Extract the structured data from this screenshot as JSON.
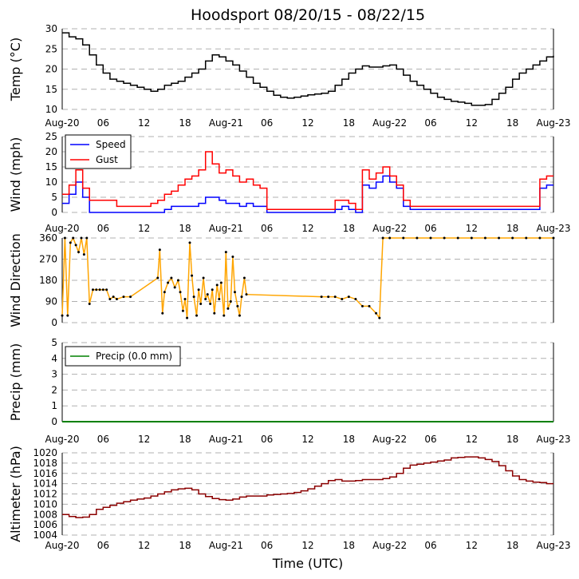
{
  "title": "Hoodsport 08/20/15 - 08/22/15",
  "xlabel": "Time (UTC)",
  "x_tick_labels": [
    "Aug-20",
    "06",
    "12",
    "18",
    "Aug-21",
    "06",
    "12",
    "18",
    "Aug-22",
    "06",
    "12",
    "18",
    "Aug-23"
  ],
  "x_range_hours": [
    0,
    72
  ],
  "colors": {
    "temp": "#000000",
    "speed": "#0000ff",
    "gust": "#ff0000",
    "direction": "#ffa500",
    "precip": "#008000",
    "altimeter": "#8b0000"
  },
  "chart_data": [
    {
      "type": "line",
      "id": "temp",
      "ylabel": "Temp (°C)",
      "ylim": [
        10,
        30
      ],
      "yticks": [
        10,
        15,
        20,
        25,
        30
      ],
      "series": [
        {
          "name": "Temp",
          "x": [
            0,
            1,
            2,
            3,
            4,
            5,
            6,
            7,
            8,
            9,
            10,
            11,
            12,
            13,
            14,
            15,
            16,
            17,
            18,
            19,
            20,
            21,
            22,
            23,
            24,
            25,
            26,
            27,
            28,
            29,
            30,
            31,
            32,
            33,
            34,
            35,
            36,
            37,
            38,
            39,
            40,
            41,
            42,
            43,
            44,
            45,
            46,
            47,
            48,
            49,
            50,
            51,
            52,
            53,
            54,
            55,
            56,
            57,
            58,
            59,
            60,
            61,
            62,
            63,
            64,
            65,
            66,
            67,
            68,
            69,
            70,
            71,
            72
          ],
          "values": [
            29,
            28,
            27.5,
            26,
            23.5,
            21,
            19,
            17.5,
            17,
            16.5,
            16,
            15.5,
            15,
            14.5,
            15,
            16,
            16.5,
            17,
            18,
            19,
            20,
            22,
            23.5,
            23,
            22,
            21,
            19.5,
            18,
            16.5,
            15.5,
            14.5,
            13.5,
            13,
            12.8,
            13,
            13.3,
            13.6,
            13.8,
            14,
            14.5,
            16,
            17.5,
            19,
            20,
            20.8,
            20.5,
            20.5,
            20.8,
            21,
            20,
            18.5,
            17,
            16,
            15,
            14,
            13,
            12.5,
            12,
            11.8,
            11.5,
            11,
            11,
            11.2,
            12.5,
            14,
            15.5,
            17.5,
            19,
            20,
            21,
            22,
            23,
            23.3
          ]
        }
      ]
    },
    {
      "type": "line",
      "id": "wind",
      "ylabel": "Wind (mph)",
      "ylim": [
        0,
        25
      ],
      "yticks": [
        0,
        5,
        10,
        15,
        20,
        25
      ],
      "legend": [
        "Speed",
        "Gust"
      ],
      "series": [
        {
          "name": "Speed",
          "x": [
            0,
            1,
            2,
            3,
            4,
            5,
            6,
            7,
            8,
            9,
            10,
            11,
            12,
            13,
            14,
            15,
            16,
            17,
            18,
            19,
            20,
            21,
            22,
            23,
            24,
            25,
            26,
            27,
            28,
            29,
            30,
            31,
            32,
            33,
            34,
            35,
            36,
            37,
            38,
            39,
            40,
            41,
            42,
            43,
            44,
            45,
            46,
            47,
            48,
            49,
            50,
            51,
            52,
            53,
            54,
            55,
            56,
            57,
            58,
            59,
            60,
            61,
            62,
            63,
            64,
            65,
            66,
            67,
            68,
            69,
            70,
            71,
            72
          ],
          "values": [
            3,
            6,
            10,
            5,
            0,
            0,
            0,
            0,
            0,
            0,
            0,
            0,
            0,
            0,
            0,
            1,
            2,
            2,
            2,
            2,
            3,
            5,
            5,
            4,
            3,
            3,
            2,
            3,
            2,
            2,
            0,
            0,
            0,
            0,
            0,
            0,
            0,
            0,
            0,
            0,
            1,
            2,
            1,
            0,
            9,
            8,
            10,
            12,
            10,
            8,
            2,
            1,
            1,
            1,
            1,
            1,
            1,
            1,
            1,
            1,
            1,
            1,
            1,
            1,
            1,
            1,
            1,
            1,
            1,
            1,
            8,
            9,
            9
          ]
        },
        {
          "name": "Gust",
          "x": [
            0,
            1,
            2,
            3,
            4,
            5,
            6,
            7,
            8,
            9,
            10,
            11,
            12,
            13,
            14,
            15,
            16,
            17,
            18,
            19,
            20,
            21,
            22,
            23,
            24,
            25,
            26,
            27,
            28,
            29,
            30,
            31,
            32,
            33,
            34,
            35,
            36,
            37,
            38,
            39,
            40,
            41,
            42,
            43,
            44,
            45,
            46,
            47,
            48,
            49,
            50,
            51,
            52,
            53,
            54,
            55,
            56,
            57,
            58,
            59,
            60,
            61,
            62,
            63,
            64,
            65,
            66,
            67,
            68,
            69,
            70,
            71,
            72
          ],
          "values": [
            6,
            9,
            14,
            8,
            4,
            4,
            4,
            4,
            2,
            2,
            2,
            2,
            2,
            3,
            4,
            6,
            7,
            9,
            11,
            12,
            14,
            20,
            16,
            13,
            14,
            12,
            10,
            11,
            9,
            8,
            1,
            1,
            1,
            1,
            1,
            1,
            1,
            1,
            1,
            1,
            4,
            4,
            3,
            1,
            14,
            11,
            13,
            15,
            12,
            9,
            4,
            2,
            2,
            2,
            2,
            2,
            2,
            2,
            2,
            2,
            2,
            2,
            2,
            2,
            2,
            2,
            2,
            2,
            2,
            2,
            11,
            12,
            12
          ]
        }
      ]
    },
    {
      "type": "scatter",
      "id": "direction",
      "ylabel": "Wind Direction",
      "ylim": [
        0,
        360
      ],
      "yticks": [
        0,
        90,
        180,
        270,
        360
      ],
      "series": [
        {
          "name": "Direction",
          "x": [
            0,
            0.4,
            0.8,
            1.2,
            1.6,
            2,
            2.4,
            2.8,
            3.2,
            3.6,
            4,
            4.5,
            5,
            5.5,
            6,
            6.5,
            7,
            7.5,
            8,
            9,
            10,
            14,
            14.3,
            14.7,
            15,
            15.5,
            16,
            16.5,
            17,
            17.3,
            17.7,
            18,
            18.3,
            18.7,
            19,
            19.3,
            19.7,
            20,
            20.3,
            20.7,
            21,
            21.3,
            21.7,
            22,
            22.3,
            22.7,
            23,
            23.3,
            23.7,
            24,
            24.3,
            24.7,
            25,
            25.3,
            25.7,
            26,
            26.3,
            26.7,
            27,
            38,
            39,
            40,
            41,
            42,
            43,
            44,
            45,
            46,
            46.5,
            47,
            48,
            50,
            52,
            54,
            56,
            58,
            60,
            62,
            64,
            66,
            68,
            70,
            72
          ],
          "values": [
            30,
            360,
            30,
            340,
            360,
            330,
            300,
            360,
            290,
            360,
            80,
            140,
            140,
            140,
            140,
            140,
            100,
            110,
            100,
            110,
            110,
            190,
            310,
            40,
            130,
            170,
            190,
            150,
            180,
            130,
            50,
            100,
            20,
            340,
            200,
            110,
            30,
            140,
            80,
            190,
            100,
            120,
            80,
            140,
            40,
            160,
            100,
            170,
            30,
            300,
            60,
            90,
            280,
            130,
            70,
            30,
            110,
            190,
            120,
            110,
            110,
            110,
            100,
            110,
            100,
            70,
            70,
            40,
            20,
            360,
            360,
            360,
            360,
            360,
            360,
            360,
            360,
            360,
            360,
            360,
            360,
            360,
            360
          ]
        }
      ]
    },
    {
      "type": "line",
      "id": "precip",
      "ylabel": "Precip (mm)",
      "ylim": [
        0,
        5
      ],
      "yticks": [
        0,
        1,
        2,
        3,
        4,
        5
      ],
      "legend": [
        "Precip (0.0 mm)"
      ],
      "series": [
        {
          "name": "Precip (0.0 mm)",
          "x": [
            0,
            72
          ],
          "values": [
            0,
            0
          ]
        }
      ]
    },
    {
      "type": "line",
      "id": "altimeter",
      "ylabel": "Altimeter (hPa)",
      "ylim": [
        1004,
        1020
      ],
      "yticks": [
        1004,
        1006,
        1008,
        1010,
        1012,
        1014,
        1016,
        1018,
        1020
      ],
      "series": [
        {
          "name": "Altimeter",
          "x": [
            0,
            1,
            2,
            3,
            4,
            5,
            6,
            7,
            8,
            9,
            10,
            11,
            12,
            13,
            14,
            15,
            16,
            17,
            18,
            19,
            20,
            21,
            22,
            23,
            24,
            25,
            26,
            27,
            28,
            29,
            30,
            31,
            32,
            33,
            34,
            35,
            36,
            37,
            38,
            39,
            40,
            41,
            42,
            43,
            44,
            45,
            46,
            47,
            48,
            49,
            50,
            51,
            52,
            53,
            54,
            55,
            56,
            57,
            58,
            59,
            60,
            61,
            62,
            63,
            64,
            65,
            66,
            67,
            68,
            69,
            70,
            71,
            72
          ],
          "values": [
            1008,
            1007.6,
            1007.4,
            1007.5,
            1008,
            1009,
            1009.4,
            1009.8,
            1010.2,
            1010.5,
            1010.8,
            1011,
            1011.2,
            1011.6,
            1012,
            1012.4,
            1012.8,
            1013,
            1013.1,
            1012.8,
            1012,
            1011.5,
            1011.1,
            1010.9,
            1010.8,
            1011,
            1011.4,
            1011.6,
            1011.6,
            1011.6,
            1011.8,
            1011.9,
            1012,
            1012.1,
            1012.3,
            1012.6,
            1013,
            1013.5,
            1014,
            1014.6,
            1014.8,
            1014.5,
            1014.5,
            1014.6,
            1014.8,
            1014.8,
            1014.8,
            1015,
            1015.3,
            1016,
            1017,
            1017.6,
            1017.8,
            1018,
            1018.2,
            1018.4,
            1018.6,
            1019,
            1019.1,
            1019.2,
            1019.2,
            1019,
            1018.7,
            1018.3,
            1017.5,
            1016.5,
            1015.5,
            1014.8,
            1014.5,
            1014.3,
            1014.2,
            1014,
            1014
          ]
        }
      ]
    }
  ]
}
